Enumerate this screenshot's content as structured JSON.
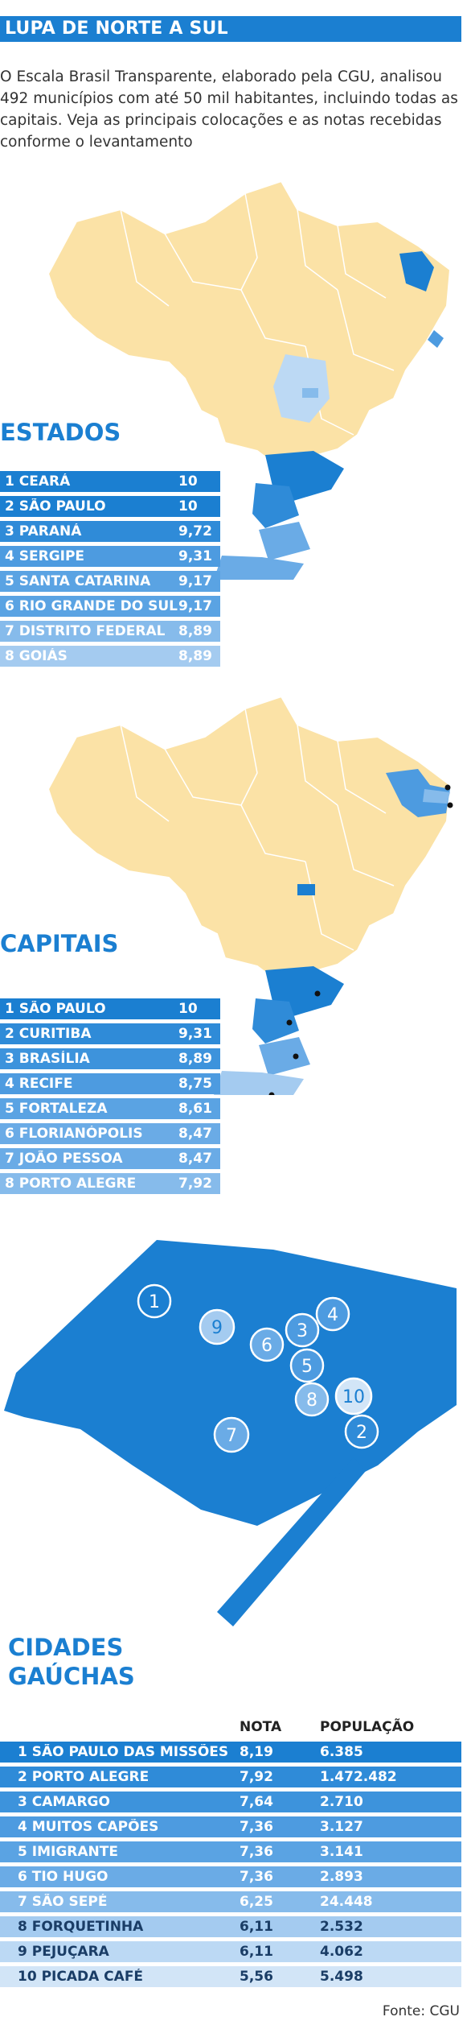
{
  "header": {
    "title": "LUPA DE NORTE A SUL"
  },
  "intro": "O Escala Brasil Transparente, elaborado pela CGU, analisou 492 municípios com até 50 mil habitantes, incluindo todas as capitais. Veja as principais colocações e as notas recebidas conforme o levantamento",
  "colors": {
    "accent": "#1b7fd1",
    "map_base": "#fbe2a6",
    "rank_1": "#1b7fd1",
    "rank_2": "#2f8bd8",
    "rank_3": "#4d9be0",
    "rank_4": "#6aabe6",
    "rank_5": "#86bbeb",
    "rank_6": "#a4cbf0",
    "rank_7": "#bcd9f4",
    "rank_8": "#d2e5f7"
  },
  "chart_data": [
    {
      "type": "table",
      "title": "ESTADOS",
      "categories": [
        "1 CEARÁ",
        "2 SÃO PAULO",
        "3 PARANÁ",
        "4 SERGIPE",
        "5 SANTA CATARINA",
        "6 RIO GRANDE DO SUL",
        "7 DISTRITO FEDERAL",
        "8 GOIÁS"
      ],
      "value_labels": [
        "10",
        "10",
        "9,72",
        "9,31",
        "9,17",
        "9,17",
        "8,89",
        "8,89"
      ],
      "values": [
        10,
        10,
        9.72,
        9.31,
        9.17,
        9.17,
        8.89,
        8.89
      ]
    },
    {
      "type": "table",
      "title": "CAPITAIS",
      "categories": [
        "1 SÃO PAULO",
        "2 CURITIBA",
        "3 BRASÍLIA",
        "4 RECIFE",
        "5 FORTALEZA",
        "6 FLORIANÓPOLIS",
        "7 JOÃO PESSOA",
        "8 PORTO ALEGRE"
      ],
      "value_labels": [
        "10",
        "9,31",
        "8,89",
        "8,75",
        "8,61",
        "8,47",
        "8,47",
        "7,92"
      ],
      "values": [
        10,
        9.31,
        8.89,
        8.75,
        8.61,
        8.47,
        8.47,
        7.92
      ]
    },
    {
      "type": "table",
      "title": "CIDADES GAÚCHAS",
      "columns": [
        "NOTA",
        "POPULAÇÃO"
      ],
      "categories": [
        "1 SÃO PAULO DAS MISSÕES",
        "2 PORTO ALEGRE",
        "3 CAMARGO",
        "4 MUITOS CAPÕES",
        "5 IMIGRANTE",
        "6 TIO HUGO",
        "7 SÃO SEPÉ",
        "8 FORQUETINHA",
        "9 PEJUÇARA",
        "10 PICADA CAFÉ"
      ],
      "nota_labels": [
        "8,19",
        "7,92",
        "7,64",
        "7,36",
        "7,36",
        "7,36",
        "6,25",
        "6,11",
        "6,11",
        "5,56"
      ],
      "nota": [
        8.19,
        7.92,
        7.64,
        7.36,
        7.36,
        7.36,
        6.25,
        6.11,
        6.11,
        5.56
      ],
      "populacao_labels": [
        "6.385",
        "1.472.482",
        "2.710",
        "3.127",
        "3.141",
        "2.893",
        "24.448",
        "2.532",
        "4.062",
        "5.498"
      ],
      "populacao": [
        6385,
        1472482,
        2710,
        3127,
        3141,
        2893,
        24448,
        2532,
        4062,
        5498
      ]
    }
  ],
  "rs_map": {
    "pins": [
      "1",
      "2",
      "3",
      "4",
      "5",
      "6",
      "7",
      "8",
      "9",
      "10"
    ]
  },
  "footer": {
    "source": "Fonte: CGU"
  }
}
